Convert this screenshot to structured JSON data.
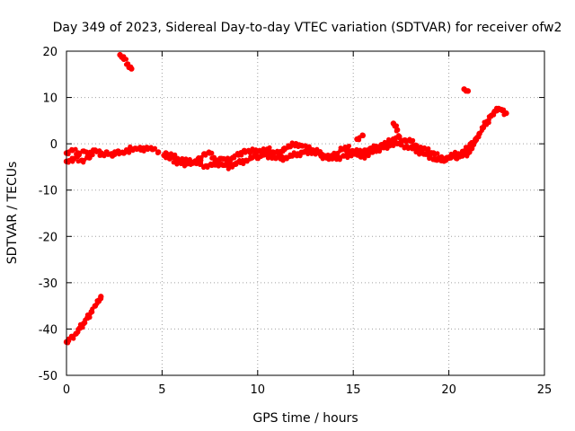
{
  "chart_data": {
    "type": "scatter",
    "title": "Day 349 of 2023, Sidereal Day-to-day VTEC variation (SDTVAR) for receiver ofw2",
    "xlabel": "GPS time / hours",
    "ylabel": "SDTVAR / TECUs",
    "xlim": [
      0,
      25
    ],
    "ylim": [
      -50,
      20
    ],
    "xticks": [
      0,
      5,
      10,
      15,
      20,
      25
    ],
    "yticks": [
      -50,
      -40,
      -30,
      -20,
      -10,
      0,
      10,
      20
    ],
    "grid": true,
    "point_color": "#ff0000",
    "series": [
      {
        "name": "SDTVAR",
        "segments": [
          {
            "x": [
              0.0,
              0.1,
              0.3,
              0.5,
              0.7,
              0.9,
              1.1,
              1.3,
              1.5,
              1.7,
              1.8
            ],
            "y": [
              -42.8,
              -42.5,
              -41.8,
              -41.0,
              -39.8,
              -38.8,
              -37.6,
              -36.3,
              -35.0,
              -33.8,
              -33.0
            ]
          },
          {
            "x": [
              2.8,
              3.0,
              3.2,
              3.4
            ],
            "y": [
              19.2,
              18.3,
              17.2,
              16.2
            ]
          },
          {
            "x": [
              0.0,
              0.3,
              0.6,
              0.9,
              1.2,
              1.5,
              1.8,
              2.1,
              2.4,
              2.7,
              3.0,
              3.3,
              3.6,
              3.9,
              4.2,
              4.5,
              4.8
            ],
            "y": [
              -2.0,
              -1.4,
              -2.0,
              -1.6,
              -2.5,
              -1.4,
              -2.4,
              -1.8,
              -2.6,
              -1.6,
              -2.0,
              -1.2,
              -1.0,
              -1.3,
              -0.8,
              -1.2,
              -1.8
            ]
          },
          {
            "x": [
              0.0,
              0.4,
              0.8,
              1.2
            ],
            "y": [
              -3.8,
              -3.2,
              -3.6,
              -3.0
            ]
          },
          {
            "x": [
              5.1,
              5.4,
              5.7,
              6.0,
              6.3,
              6.6,
              6.9,
              7.2,
              7.5,
              7.8,
              8.1,
              8.4,
              8.7,
              9.0,
              9.3,
              9.6,
              9.9,
              10.2,
              10.5,
              10.8,
              11.1,
              11.4,
              11.7,
              12.0,
              12.3,
              12.6,
              12.9,
              13.2,
              13.5,
              13.8,
              14.1,
              14.4,
              14.7,
              15.0,
              15.3,
              15.6,
              15.9,
              16.2,
              16.5,
              16.8,
              17.1,
              17.4,
              17.7,
              18.0,
              18.3,
              18.6,
              18.9,
              19.2,
              19.5,
              19.8,
              20.1,
              20.4,
              20.7,
              21.0,
              21.2,
              21.4,
              21.6,
              21.8,
              22.0,
              22.2,
              22.4,
              22.6,
              22.8,
              23.0
            ],
            "y": [
              -2.5,
              -3.2,
              -3.8,
              -4.2,
              -4.3,
              -4.0,
              -3.6,
              -2.2,
              -2.0,
              -3.5,
              -3.2,
              -3.8,
              -3.0,
              -2.4,
              -1.5,
              -1.8,
              -1.4,
              -1.6,
              -1.2,
              -1.8,
              -2.2,
              -1.0,
              -0.6,
              0.0,
              -0.4,
              -1.0,
              -1.4,
              -1.8,
              -2.6,
              -2.8,
              -2.2,
              -1.2,
              -0.8,
              -1.6,
              -1.8,
              -1.4,
              -1.2,
              -0.6,
              -0.2,
              0.2,
              1.0,
              1.4,
              0.8,
              0.6,
              -0.4,
              -1.0,
              -1.4,
              -2.0,
              -3.0,
              -3.4,
              -3.0,
              -2.8,
              -2.6,
              -2.0,
              -1.0,
              0.8,
              2.2,
              3.5,
              4.8,
              6.0,
              7.0,
              7.6,
              7.2,
              6.6
            ]
          },
          {
            "x": [
              5.2,
              5.5,
              5.8,
              6.1,
              6.4,
              6.7,
              7.0,
              7.3,
              7.6,
              7.9,
              8.2,
              8.5,
              8.8,
              9.1,
              9.4,
              9.7,
              10.0,
              10.3,
              10.6,
              10.9,
              11.2,
              11.5,
              11.8,
              12.1,
              12.4,
              12.7,
              13.0,
              13.3,
              13.6,
              13.9,
              14.2,
              14.5,
              14.8,
              15.1,
              15.4,
              15.7,
              16.0,
              16.3,
              16.6,
              16.9,
              17.2,
              17.5,
              17.8,
              18.1,
              18.4,
              18.7,
              19.0,
              19.3,
              19.6,
              19.9,
              20.2,
              20.5,
              20.8,
              21.0,
              21.2,
              21.4
            ],
            "y": [
              -2.0,
              -2.6,
              -3.2,
              -3.4,
              -3.8,
              -4.1,
              -4.4,
              -4.8,
              -4.6,
              -4.2,
              -4.6,
              -5.0,
              -4.4,
              -4.0,
              -3.6,
              -3.0,
              -2.8,
              -2.4,
              -2.6,
              -3.0,
              -3.2,
              -3.0,
              -2.6,
              -2.2,
              -1.8,
              -1.6,
              -2.0,
              -2.4,
              -3.0,
              -3.2,
              -3.0,
              -2.6,
              -2.4,
              -2.2,
              -2.8,
              -2.4,
              -1.8,
              -1.2,
              -0.8,
              -0.4,
              0.2,
              -0.2,
              -0.6,
              -1.0,
              -1.6,
              -2.2,
              -2.8,
              -3.4,
              -3.6,
              -3.0,
              -2.4,
              -2.2,
              -1.6,
              -0.8,
              0.2,
              1.0
            ]
          },
          {
            "x": [
              15.2,
              15.5
            ],
            "y": [
              1.0,
              1.8
            ]
          },
          {
            "x": [
              17.1,
              17.3
            ],
            "y": [
              4.4,
              3.0
            ]
          },
          {
            "x": [
              20.8,
              21.0
            ],
            "y": [
              11.8,
              11.4
            ]
          }
        ]
      }
    ]
  }
}
